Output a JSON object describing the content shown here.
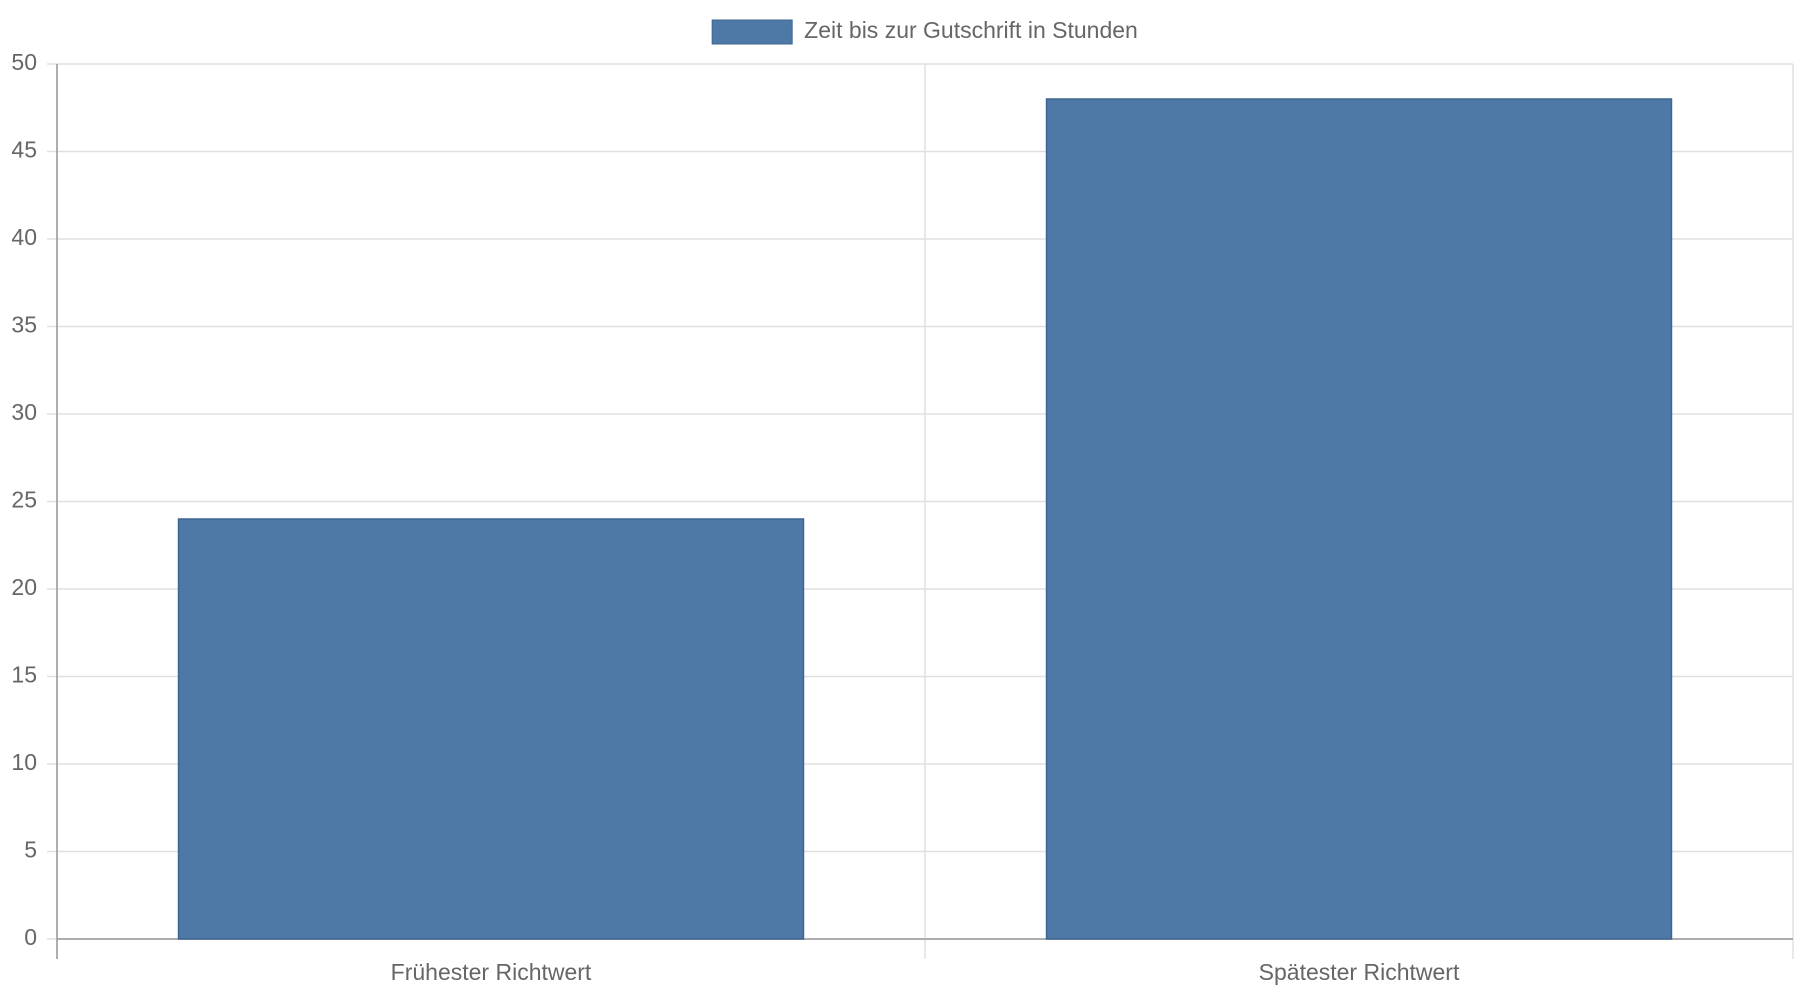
{
  "chart_data": {
    "type": "bar",
    "categories": [
      "Frühester Richtwert",
      "Spätester Richtwert"
    ],
    "series": [
      {
        "name": "Zeit bis zur Gutschrift in Stunden",
        "color": "#4e79a7",
        "values": [
          24,
          48
        ]
      }
    ],
    "ylim": [
      0,
      50
    ],
    "yticks": [
      0,
      5,
      10,
      15,
      20,
      25,
      30,
      35,
      40,
      45,
      50
    ],
    "grid": true,
    "legend": "top"
  }
}
